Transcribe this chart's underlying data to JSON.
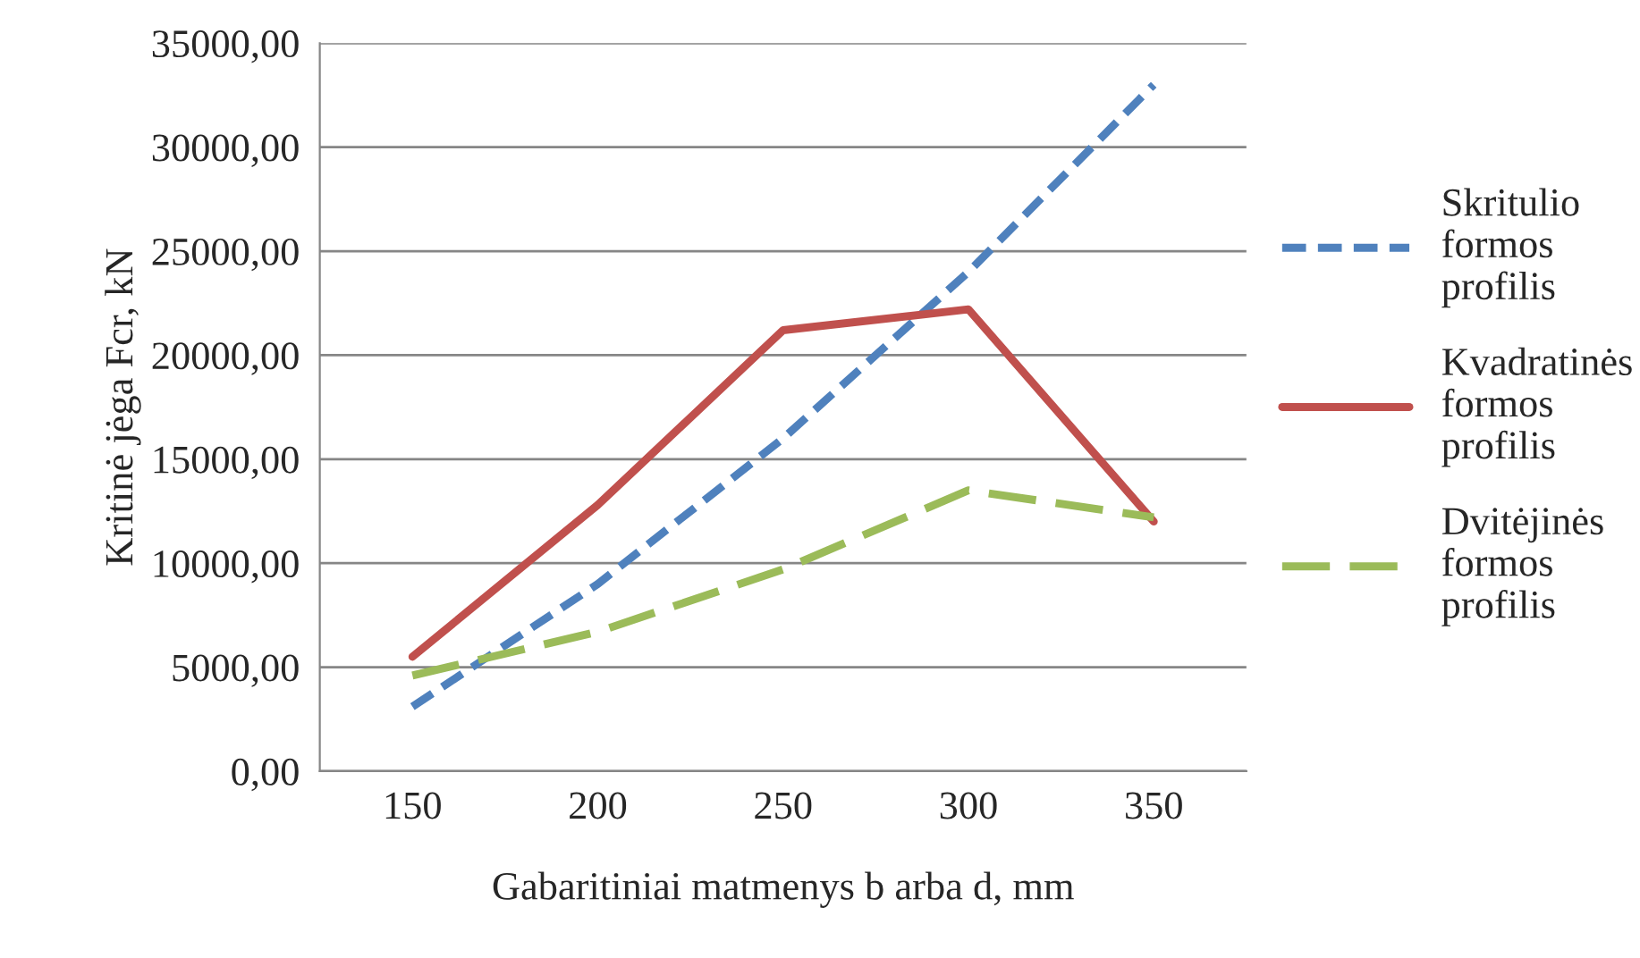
{
  "chart_data": {
    "type": "line",
    "xlabel": "Gabaritiniai matmenys b arba d, mm",
    "ylabel": "Kritinė jėga Fcr, kN",
    "categories": [
      "150",
      "200",
      "250",
      "300",
      "350"
    ],
    "series": [
      {
        "name": "Skritulio formos profilis",
        "color": "#4f81bd",
        "line_style": "dashed",
        "values": [
          3100,
          9000,
          16000,
          24000,
          33000
        ]
      },
      {
        "name": "Kvadratinės formos profilis",
        "color": "#c0504d",
        "line_style": "solid",
        "values": [
          5500,
          12800,
          21200,
          22200,
          12000
        ]
      },
      {
        "name": "Dvitėjinės formos profilis",
        "color": "#9bbb59",
        "line_style": "longdash",
        "values": [
          4600,
          6700,
          9700,
          13500,
          12200
        ]
      }
    ],
    "ylim": [
      0,
      35000
    ],
    "yticks": [
      {
        "value": 0,
        "label": "0,00"
      },
      {
        "value": 5000,
        "label": "5000,00"
      },
      {
        "value": 10000,
        "label": "10000,00"
      },
      {
        "value": 15000,
        "label": "15000,00"
      },
      {
        "value": 20000,
        "label": "20000,00"
      },
      {
        "value": 25000,
        "label": "25000,00"
      },
      {
        "value": 30000,
        "label": "30000,00"
      },
      {
        "value": 35000,
        "label": "35000,00"
      }
    ],
    "grid": "y",
    "legend": "right"
  }
}
